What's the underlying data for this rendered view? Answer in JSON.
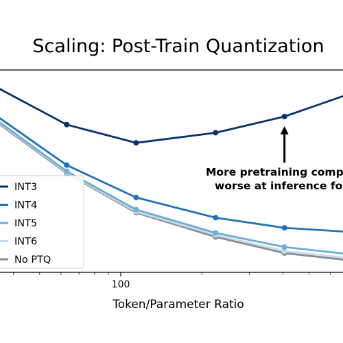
{
  "chart_data": {
    "type": "line",
    "title": "Scaling: Post-Train Quantization",
    "xlabel": "Token/Parameter Ratio",
    "ylabel": "",
    "x_scale": "log",
    "xlim": [
      34,
      700
    ],
    "ylim": [
      0,
      100
    ],
    "x_tick_labels": [
      {
        "value": 100,
        "label": "100"
      }
    ],
    "grid": false,
    "legend_position": "left",
    "x": [
      34,
      63,
      114,
      225,
      405,
      700
    ],
    "series": [
      {
        "name": "INT3",
        "color": "#08306b",
        "values": [
          92,
          73,
          64,
          69,
          77,
          88
        ]
      },
      {
        "name": "INT4",
        "color": "#2171b5",
        "values": [
          78,
          53,
          37,
          27,
          22,
          20
        ]
      },
      {
        "name": "INT5",
        "color": "#6baed6",
        "values": [
          76,
          50,
          31,
          19.5,
          12.5,
          9
        ]
      },
      {
        "name": "INT6",
        "color": "#c6dbef",
        "values": [
          75.5,
          49.5,
          30,
          18.5,
          10.5,
          7
        ]
      },
      {
        "name": "No PTQ",
        "color": "#8c8c8c",
        "values": [
          75,
          49,
          29.5,
          17.5,
          9.5,
          6
        ]
      }
    ],
    "annotation": {
      "lines": [
        "More pretraining compute",
        "worse at inference for"
      ],
      "arrow_target": {
        "x": 405,
        "y": 77
      }
    }
  }
}
